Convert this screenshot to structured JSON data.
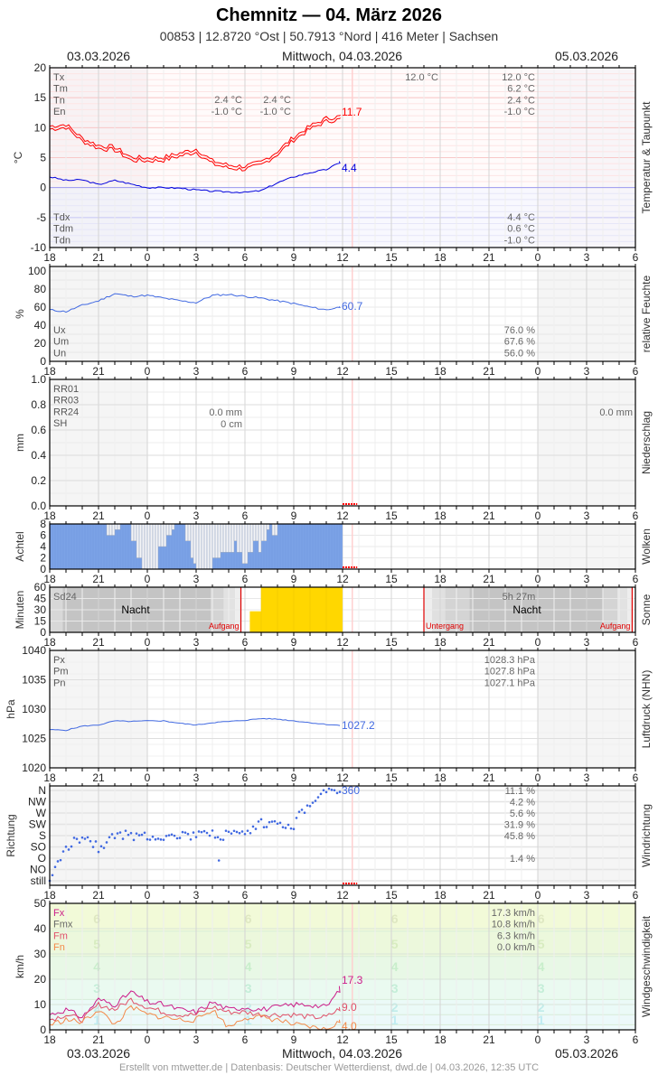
{
  "header": {
    "title": "Chemnitz  —  04. März 2026",
    "subtitle": "00853  |  12.8720 °Ost  |  50.7913 °Nord  |  416 Meter  |  Sachsen"
  },
  "dates": {
    "left": "03.03.2026",
    "center": "Mittwoch, 04.03.2026",
    "right": "05.03.2026"
  },
  "footer": "Erstellt von mtwetter.de | Datenbasis: Deutscher Wetterdienst, dwd.de | 04.03.2026, 12:35 UTC",
  "x_ticks": [
    "18",
    "21",
    "0",
    "3",
    "6",
    "9",
    "12",
    "15",
    "18",
    "21",
    "0",
    "3",
    "6"
  ],
  "panels": {
    "temperature": {
      "side_label": "Temperatur & Taupunkt",
      "unit": "°C",
      "y_ticks": [
        "20",
        "15",
        "10",
        "5",
        "0",
        "-5",
        "-10"
      ],
      "legend_top": [
        "Tx",
        "Tm",
        "Tn",
        "En"
      ],
      "legend_bottom": [
        "Tdx",
        "Tdm",
        "Tdn"
      ],
      "day1_tn": "2.4 °C",
      "day1_en": "-1.0 °C",
      "day2_tn": "2.4 °C",
      "day2_en": "-1.0 °C",
      "tx_mid": "12.0 °C",
      "right_top": [
        "12.0 °C",
        "6.2 °C",
        "2.4 °C",
        "-1.0 °C"
      ],
      "right_bottom": [
        "4.4 °C",
        "0.6 °C",
        "-1.0 °C"
      ],
      "last_temp": "11.7",
      "last_dew": "4.4"
    },
    "humidity": {
      "side_label": "relative Feuchte",
      "unit": "%",
      "y_ticks": [
        "100",
        "80",
        "60",
        "40",
        "20",
        "0"
      ],
      "legend": [
        "Ux",
        "Um",
        "Un"
      ],
      "values": [
        "76.0 %",
        "67.6 %",
        "56.0 %"
      ],
      "last": "60.7"
    },
    "precip": {
      "side_label": "Niederschlag",
      "unit": "mm",
      "y_ticks": [
        "1.0",
        "0.8",
        "0.6",
        "0.4",
        "0.2",
        "0.0"
      ],
      "legend": [
        "RR01",
        "RR03",
        "RR24",
        "SH"
      ],
      "rr24_day": "0.0 mm",
      "sh_day": "0 cm",
      "rr24_right": "0.0 mm"
    },
    "clouds": {
      "side_label": "Wolken",
      "unit": "Achtel",
      "y_ticks": [
        "8",
        "6",
        "4",
        "2",
        "0"
      ]
    },
    "sun": {
      "side_label": "Sonne",
      "unit": "Minuten",
      "y_ticks": [
        "60",
        "45",
        "30",
        "15",
        "0"
      ],
      "legend": "Sd24",
      "night": "Nacht",
      "sunrise": "Aufgang",
      "sunset": "Untergang",
      "duration": "5h 27m"
    },
    "pressure": {
      "side_label": "Luftdruck (NHN)",
      "unit": "hPa",
      "y_ticks": [
        "1040",
        "1035",
        "1030",
        "1025",
        "1020"
      ],
      "legend": [
        "Px",
        "Pm",
        "Pn"
      ],
      "values": [
        "1028.3 hPa",
        "1027.8 hPa",
        "1027.1 hPa"
      ],
      "last": "1027.2"
    },
    "wind_dir": {
      "side_label": "Windrichtung",
      "unit": "Richtung",
      "y_ticks": [
        "N",
        "NW",
        "W",
        "SW",
        "S",
        "SO",
        "O",
        "NO",
        "still"
      ],
      "percents": [
        "11.1 %",
        "4.2 %",
        "5.6 %",
        "31.9 %",
        "45.8 %",
        "",
        "1.4 %",
        "",
        ""
      ],
      "last": "360"
    },
    "wind_speed": {
      "side_label": "Windgeschwindigkeit",
      "unit": "km/h",
      "y_ticks": [
        "50",
        "40",
        "30",
        "20",
        "10",
        "0"
      ],
      "legend": [
        "Fx",
        "Fmx",
        "Fm",
        "Fn"
      ],
      "values": [
        "17.3 km/h",
        "10.8 km/h",
        "6.3 km/h",
        "0.0 km/h"
      ],
      "last_fx": "17.3",
      "last_fm": "9.0",
      "last_fn": "4.0",
      "beaufort": [
        "6",
        "5",
        "4",
        "3",
        "2",
        "1"
      ]
    }
  },
  "chart_data": [
    {
      "type": "line",
      "title": "Temperatur & Taupunkt",
      "ylabel": "°C",
      "ylim": [
        -10,
        20
      ],
      "x": [
        "18",
        "19",
        "20",
        "21",
        "22",
        "23",
        "0",
        "1",
        "2",
        "3",
        "4",
        "5",
        "6",
        "7",
        "8",
        "9",
        "10",
        "11",
        "12"
      ],
      "series": [
        {
          "name": "Temperatur",
          "color": "#ff0000",
          "values": [
            10.0,
            10.3,
            8.0,
            6.8,
            6.5,
            4.8,
            4.7,
            4.8,
            5.5,
            6.2,
            4.2,
            3.5,
            3.3,
            4.0,
            5.8,
            8.2,
            10.0,
            11.3,
            11.7
          ]
        },
        {
          "name": "Taupunkt",
          "color": "#0000ff",
          "values": [
            1.8,
            1.2,
            1.3,
            0.5,
            1.2,
            0.6,
            0.0,
            0.0,
            -0.1,
            -0.4,
            -0.6,
            -0.7,
            -0.8,
            -0.5,
            0.8,
            1.8,
            2.5,
            3.0,
            4.4
          ]
        }
      ]
    },
    {
      "type": "line",
      "title": "relative Feuchte",
      "ylabel": "%",
      "ylim": [
        0,
        100
      ],
      "x": [
        "18",
        "19",
        "20",
        "21",
        "22",
        "23",
        "0",
        "1",
        "2",
        "3",
        "4",
        "5",
        "6",
        "7",
        "8",
        "9",
        "10",
        "11",
        "12"
      ],
      "series": [
        {
          "name": "Feuchte",
          "color": "#4169e1",
          "values": [
            57,
            55,
            62,
            67,
            75,
            72,
            73,
            70,
            67,
            65,
            73,
            74,
            72,
            70,
            67,
            64,
            60,
            57,
            60.7
          ]
        }
      ]
    },
    {
      "type": "bar",
      "title": "Niederschlag",
      "ylabel": "mm",
      "ylim": [
        0,
        1.0
      ],
      "x": [
        "18",
        "21",
        "0",
        "3",
        "6",
        "9",
        "12"
      ],
      "values": [
        0,
        0,
        0,
        0,
        0,
        0,
        0
      ]
    },
    {
      "type": "bar",
      "title": "Wolken",
      "ylabel": "Achtel",
      "ylim": [
        0,
        8
      ],
      "x": [
        "18",
        "19",
        "20",
        "21",
        "22",
        "23",
        "0",
        "1",
        "2",
        "3",
        "4",
        "5",
        "6",
        "7",
        "8",
        "9",
        "10",
        "11",
        "12"
      ],
      "values": [
        8,
        8,
        8,
        6,
        8,
        2,
        0,
        6,
        2,
        0,
        0,
        6,
        3,
        4,
        8,
        8,
        8,
        8,
        8
      ]
    },
    {
      "type": "bar",
      "title": "Sonne",
      "ylabel": "Minuten",
      "ylim": [
        0,
        60
      ],
      "x": [
        "6",
        "7",
        "8",
        "9",
        "10",
        "11"
      ],
      "values": [
        28,
        60,
        60,
        60,
        60,
        60
      ]
    },
    {
      "type": "line",
      "title": "Luftdruck (NHN)",
      "ylabel": "hPa",
      "ylim": [
        1020,
        1040
      ],
      "x": [
        "18",
        "19",
        "20",
        "21",
        "22",
        "23",
        "0",
        "1",
        "2",
        "3",
        "4",
        "5",
        "6",
        "7",
        "8",
        "9",
        "10",
        "11",
        "12"
      ],
      "series": [
        {
          "name": "Luftdruck",
          "color": "#4169e1",
          "values": [
            1026.5,
            1026.4,
            1027.1,
            1027.3,
            1028.0,
            1027.9,
            1028.0,
            1028.0,
            1027.6,
            1027.3,
            1027.7,
            1027.9,
            1028.1,
            1028.4,
            1028.3,
            1028.0,
            1027.7,
            1027.4,
            1027.2
          ]
        }
      ]
    },
    {
      "type": "scatter",
      "title": "Windrichtung",
      "ylabel": "Richtung",
      "x": [
        "18",
        "19",
        "20",
        "21",
        "22",
        "23",
        "0",
        "1",
        "2",
        "3",
        "4",
        "5",
        "6",
        "7",
        "8",
        "9",
        "10",
        "11",
        "12"
      ],
      "series": [
        {
          "name": "Richtung",
          "color": "#4169e1",
          "values": [
            "still",
            "SO",
            "S",
            "SO",
            "S",
            "S",
            "S",
            "S",
            "S",
            "S",
            "S",
            "S",
            "S",
            "SW",
            "SW",
            "SW",
            "NW",
            "N",
            "N"
          ]
        }
      ],
      "percents": {
        "N": 11.1,
        "NW": 4.2,
        "W": 5.6,
        "SW": 31.9,
        "S": 45.8,
        "O": 1.4
      }
    },
    {
      "type": "line",
      "title": "Windgeschwindigkeit",
      "ylabel": "km/h",
      "ylim": [
        0,
        50
      ],
      "x": [
        "18",
        "19",
        "20",
        "21",
        "22",
        "23",
        "0",
        "1",
        "2",
        "3",
        "4",
        "5",
        "6",
        "7",
        "8",
        "9",
        "10",
        "11",
        "12"
      ],
      "series": [
        {
          "name": "Fx",
          "color": "#cc1c8a",
          "values": [
            6,
            8,
            5,
            12,
            10,
            15,
            11,
            10,
            8,
            7,
            11,
            8,
            9,
            8,
            9,
            10,
            10,
            9,
            17.3
          ]
        },
        {
          "name": "Fm",
          "color": "#e0506a",
          "values": [
            4,
            6,
            4,
            10,
            8,
            12,
            9,
            7,
            6,
            6,
            9,
            7,
            7,
            6,
            6,
            6,
            5,
            5,
            9.0
          ]
        },
        {
          "name": "Fn",
          "color": "#f4894a",
          "values": [
            2,
            4,
            3,
            8,
            2,
            9,
            6,
            5,
            4,
            4,
            8,
            1,
            5,
            5,
            4,
            2,
            1,
            0,
            4.0
          ]
        }
      ]
    }
  ]
}
